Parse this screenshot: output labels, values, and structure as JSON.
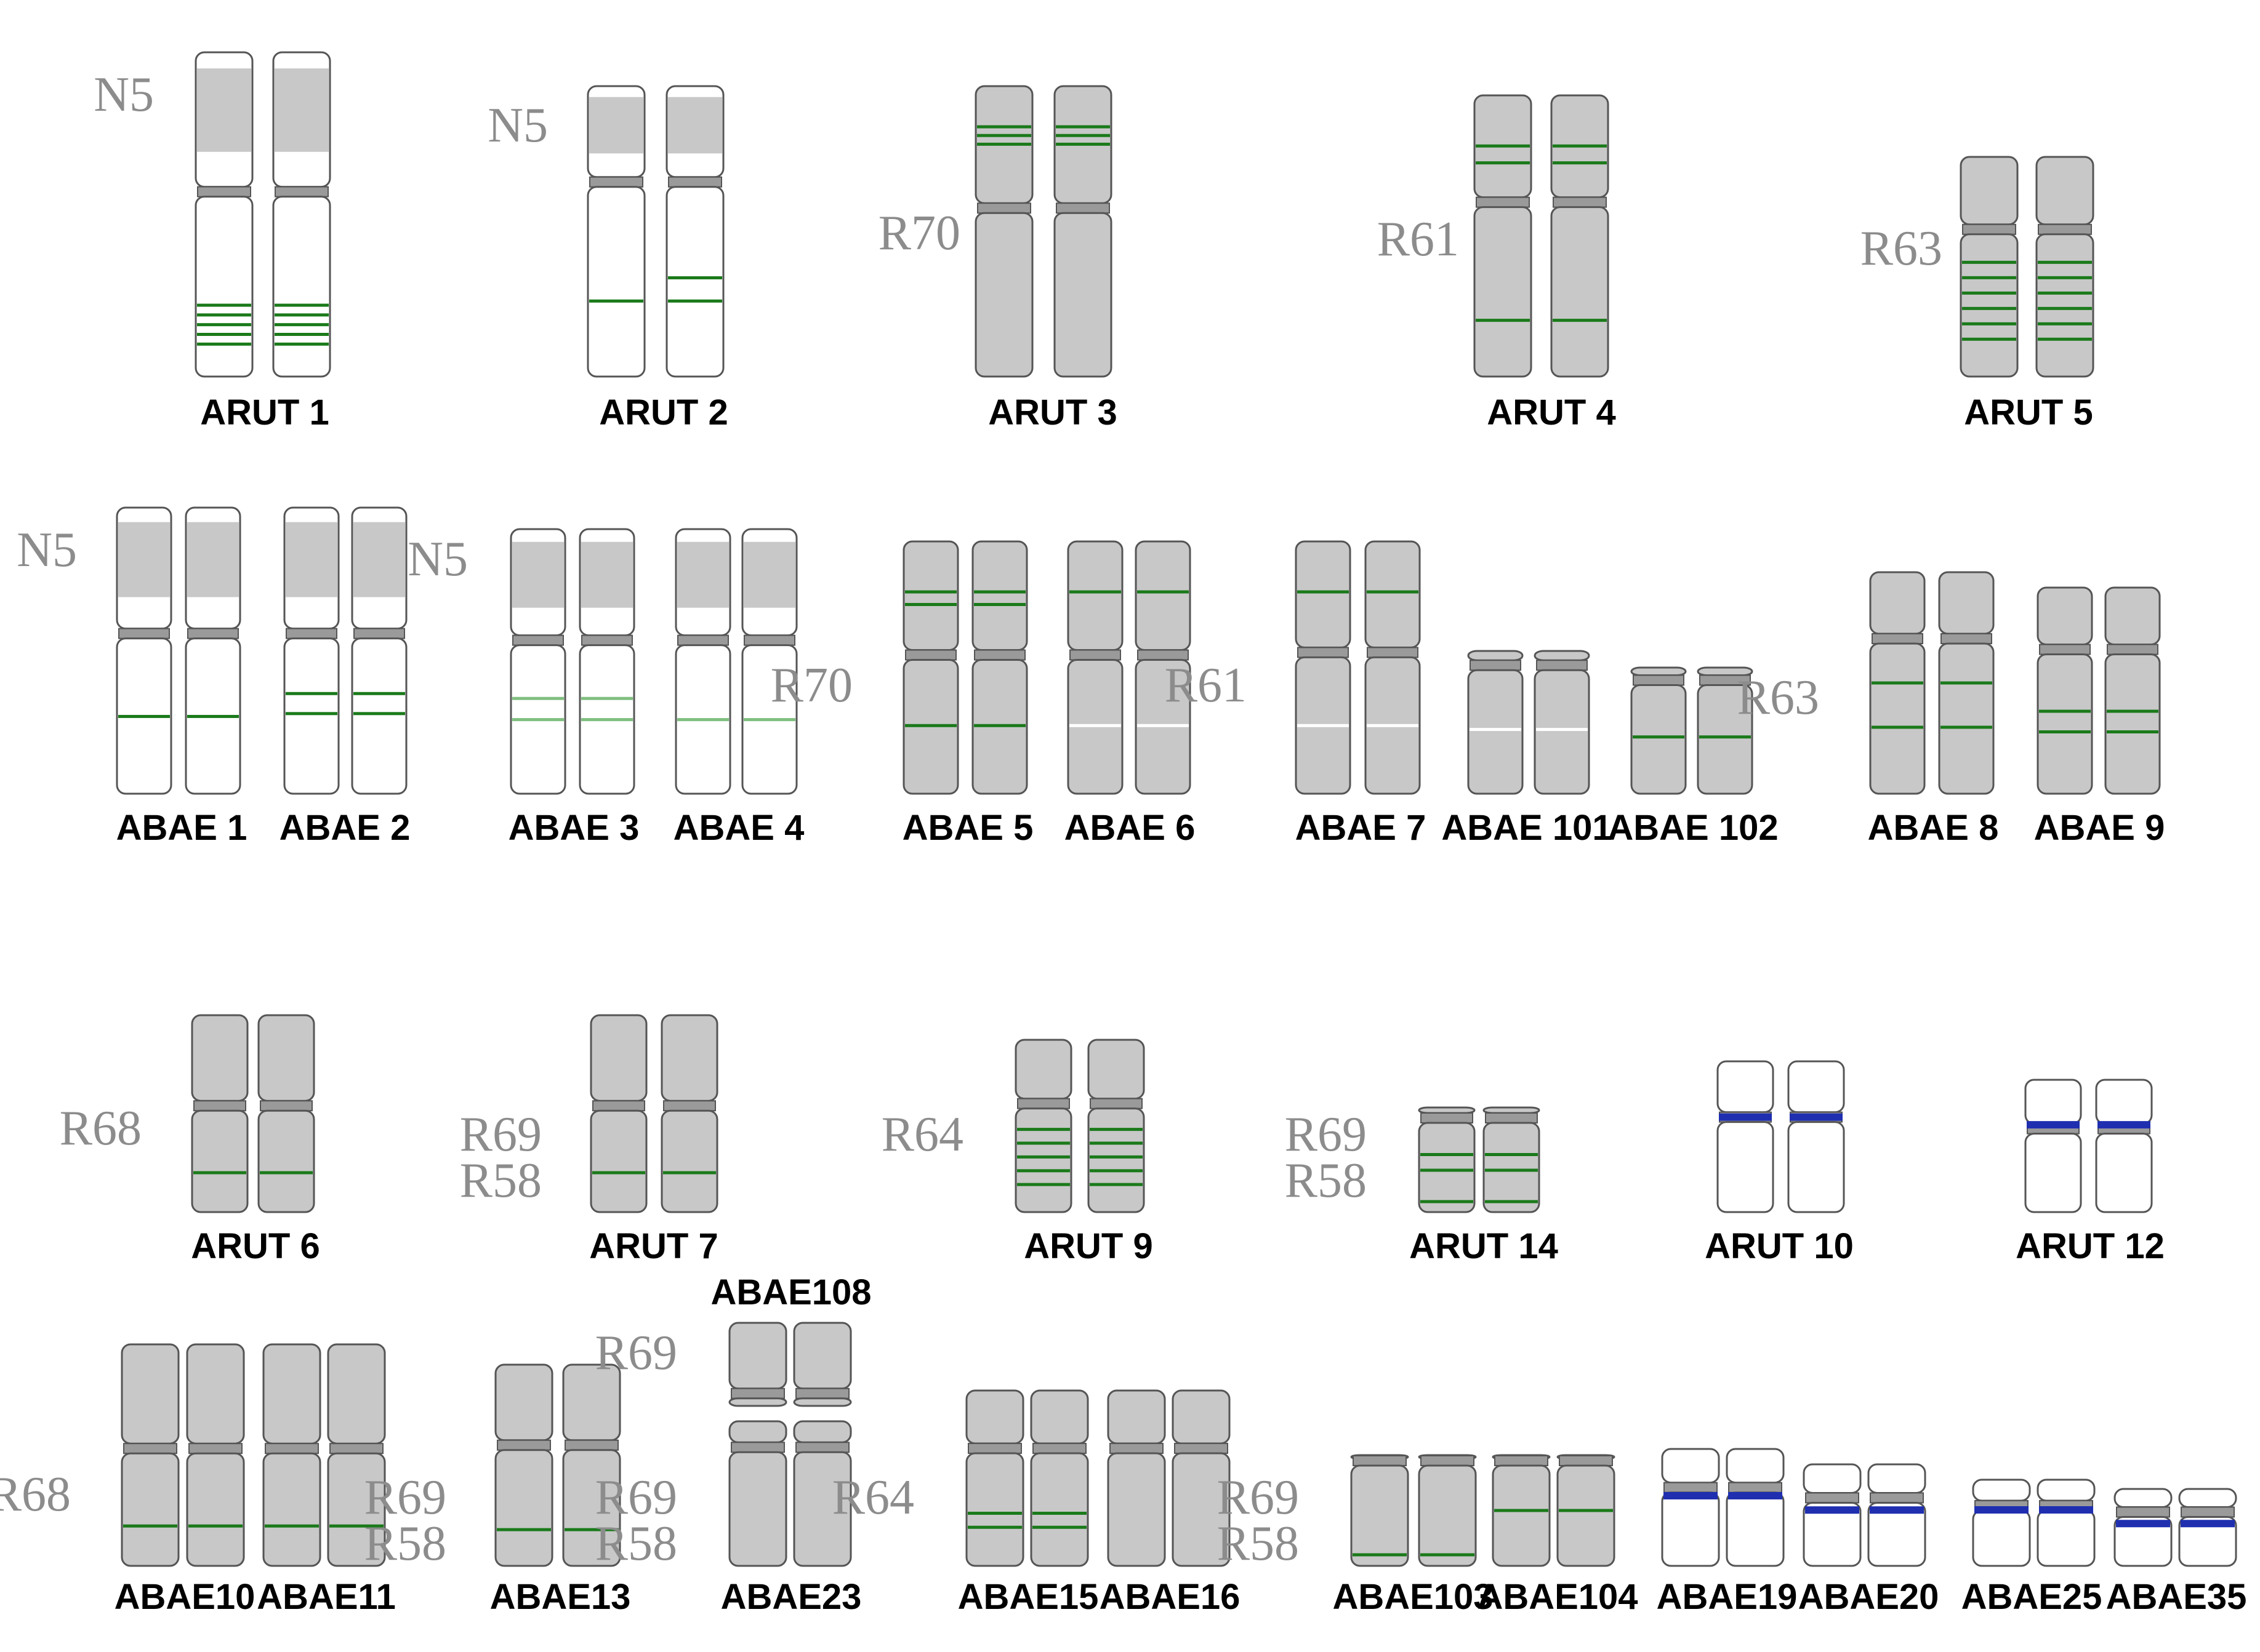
{
  "colors": {
    "grey_fill": "#c8c8c8",
    "white_fill": "#ffffff",
    "outline": "#555555",
    "green_band": "#1a7a1a",
    "blue_band": "#1f2fb0",
    "label_grey": "#8c8c8c",
    "caption": "#000000"
  },
  "groups": [
    {
      "id": "ARUT 1",
      "caption": "ARUT 1",
      "text": "N5",
      "style": "N5",
      "bands": [
        [
          0.78,
          "g"
        ],
        [
          0.81,
          "g"
        ],
        [
          0.84,
          "g"
        ],
        [
          0.87,
          "g"
        ],
        [
          0.9,
          "g"
        ]
      ],
      "bands2": []
    },
    {
      "id": "ARUT 2",
      "caption": "ARUT 2",
      "text": "N5",
      "style": "N5",
      "bands": [
        [
          0.74,
          "g"
        ]
      ],
      "bands2": [
        [
          0.66,
          "g"
        ],
        [
          0.74,
          "g"
        ]
      ]
    },
    {
      "id": "ARUT 3",
      "caption": "ARUT 3",
      "text": "R70",
      "style": "grey",
      "bands": [
        [
          0.14,
          "g"
        ],
        [
          0.17,
          "g"
        ],
        [
          0.2,
          "g"
        ]
      ],
      "bands2": []
    },
    {
      "id": "ARUT 4",
      "caption": "ARUT 4",
      "text": "R61",
      "style": "grey",
      "bands": [
        [
          0.18,
          "g"
        ],
        [
          0.24,
          "g"
        ],
        [
          0.8,
          "g"
        ]
      ],
      "bands2": []
    },
    {
      "id": "ARUT 5",
      "caption": "ARUT 5",
      "text": "R63",
      "style": "grey",
      "bands": [
        [
          0.48,
          "g"
        ],
        [
          0.55,
          "g"
        ],
        [
          0.62,
          "g"
        ],
        [
          0.69,
          "g"
        ],
        [
          0.76,
          "g"
        ],
        [
          0.83,
          "g"
        ]
      ],
      "bands2": []
    },
    {
      "id": "ABAE 1",
      "caption": "ABAE 1",
      "text": "N5",
      "style": "N5",
      "bands": [
        [
          0.73,
          "g"
        ]
      ],
      "bands2": []
    },
    {
      "id": "ABAE 2",
      "caption": "ABAE 2",
      "text": "",
      "style": "N5",
      "bands": [
        [
          0.65,
          "g"
        ],
        [
          0.72,
          "g"
        ]
      ],
      "bands2": []
    },
    {
      "id": "ABAE 3",
      "caption": "ABAE 3",
      "text": "N5",
      "style": "N5",
      "bands": [
        [
          0.64,
          "lg"
        ],
        [
          0.72,
          "lg"
        ]
      ],
      "bands2": []
    },
    {
      "id": "ABAE 4",
      "caption": "ABAE 4",
      "text": "",
      "style": "N5",
      "bands": [
        [
          0.72,
          "lg"
        ]
      ],
      "bands2": []
    },
    {
      "id": "ABAE 5",
      "caption": "ABAE 5",
      "text": "R70",
      "style": "grey",
      "bands": [
        [
          0.2,
          "g"
        ],
        [
          0.25,
          "g"
        ],
        [
          0.73,
          "g"
        ]
      ],
      "bands2": []
    },
    {
      "id": "ABAE 6",
      "caption": "ABAE 6",
      "text": "",
      "style": "grey",
      "bands": [
        [
          0.2,
          "g"
        ],
        [
          0.73,
          "w"
        ]
      ],
      "bands2": []
    },
    {
      "id": "ABAE 7",
      "caption": "ABAE 7",
      "text": "R61",
      "style": "grey",
      "bands": [
        [
          0.2,
          "g"
        ],
        [
          0.73,
          "w"
        ]
      ],
      "bands2": []
    },
    {
      "id": "ABAE 101",
      "caption": "ABAE 101",
      "text": "",
      "style": "grey",
      "bands": [
        [
          0.55,
          "w"
        ]
      ],
      "bands2": []
    },
    {
      "id": "ABAE 102",
      "caption": "ABAE 102",
      "text": "",
      "style": "grey",
      "bands": [
        [
          0.55,
          "g"
        ]
      ],
      "bands2": []
    },
    {
      "id": "ABAE 8",
      "caption": "ABAE 8",
      "text": "R63",
      "style": "grey",
      "bands": [
        [
          0.5,
          "g"
        ],
        [
          0.7,
          "g"
        ]
      ],
      "bands2": []
    },
    {
      "id": "ABAE 9",
      "caption": "ABAE 9",
      "text": "",
      "style": "grey",
      "bands": [
        [
          0.6,
          "g"
        ],
        [
          0.7,
          "g"
        ]
      ],
      "bands2": []
    },
    {
      "id": "ARUT 6",
      "caption": "ARUT 6",
      "text": "R68",
      "style": "grey",
      "bands": [
        [
          0.8,
          "g"
        ]
      ],
      "bands2": []
    },
    {
      "id": "ARUT 7",
      "caption": "ARUT 7",
      "text": "R69 R58",
      "style": "grey",
      "bands": [
        [
          0.8,
          "g"
        ]
      ],
      "bands2": []
    },
    {
      "id": "ARUT 9",
      "caption": "ARUT 9",
      "text": "R64",
      "style": "grey",
      "bands": [
        [
          0.52,
          "g"
        ],
        [
          0.6,
          "g"
        ],
        [
          0.68,
          "g"
        ],
        [
          0.76,
          "g"
        ],
        [
          0.84,
          "g"
        ]
      ],
      "bands2": []
    },
    {
      "id": "ARUT 14",
      "caption": "ARUT 14",
      "text": "R69 R58",
      "style": "grey",
      "bands": [
        [
          0.45,
          "g"
        ],
        [
          0.6,
          "g"
        ],
        [
          0.9,
          "g"
        ]
      ],
      "bands2": []
    },
    {
      "id": "ARUT 10",
      "caption": "ARUT 10",
      "text": "",
      "style": "white",
      "bands": [
        [
          0.37,
          "b"
        ]
      ],
      "bands2": []
    },
    {
      "id": "ARUT 12",
      "caption": "ARUT 12",
      "text": "",
      "style": "white",
      "bands": [
        [
          0.34,
          "b"
        ]
      ],
      "bands2": []
    },
    {
      "id": "ABAE10",
      "caption": "ABAE10",
      "text": "R68",
      "style": "grey",
      "bands": [
        [
          0.82,
          "g"
        ]
      ],
      "bands2": []
    },
    {
      "id": "ABAE11",
      "caption": "ABAE11",
      "text": "",
      "style": "grey",
      "bands": [
        [
          0.82,
          "g"
        ]
      ],
      "bands2": []
    },
    {
      "id": "ABAE13",
      "caption": "ABAE13",
      "text": "R69 R58",
      "style": "grey",
      "bands": [
        [
          0.82,
          "g"
        ]
      ],
      "bands2": []
    },
    {
      "id": "ABAE23",
      "caption": "ABAE23",
      "text": "R69 R58",
      "style": "grey",
      "bands": [],
      "bands2": []
    },
    {
      "id": "ABAE108",
      "caption": "ABAE108",
      "text": "R69",
      "style": "grey",
      "bands": [],
      "bands2": []
    },
    {
      "id": "ABAE15",
      "caption": "ABAE15",
      "text": "R64",
      "style": "grey",
      "bands": [
        [
          0.7,
          "g"
        ],
        [
          0.78,
          "g"
        ]
      ],
      "bands2": []
    },
    {
      "id": "ABAE16",
      "caption": "ABAE16",
      "text": "",
      "style": "grey",
      "bands": [],
      "bands2": []
    },
    {
      "id": "ABAE103",
      "caption": "ABAE103",
      "text": "R69 R58",
      "style": "grey",
      "bands": [
        [
          0.9,
          "g"
        ]
      ],
      "bands2": []
    },
    {
      "id": "ABAE104",
      "caption": "ABAE104",
      "text": "",
      "style": "grey",
      "bands": [
        [
          0.5,
          "g"
        ]
      ],
      "bands2": []
    },
    {
      "id": "ABAE19",
      "caption": "ABAE19",
      "text": "",
      "style": "white",
      "bands": [
        [
          0.4,
          "b"
        ]
      ],
      "bands2": []
    },
    {
      "id": "ABAE20",
      "caption": "ABAE20",
      "text": "",
      "style": "white",
      "bands": [
        [
          0.45,
          "b"
        ]
      ],
      "bands2": []
    },
    {
      "id": "ABAE25",
      "caption": "ABAE25",
      "text": "",
      "style": "white",
      "bands": [
        [
          0.35,
          "b"
        ]
      ],
      "bands2": []
    },
    {
      "id": "ABAE35",
      "caption": "ABAE35",
      "text": "",
      "style": "white",
      "bands": [
        [
          0.45,
          "b"
        ]
      ],
      "bands2": []
    }
  ]
}
